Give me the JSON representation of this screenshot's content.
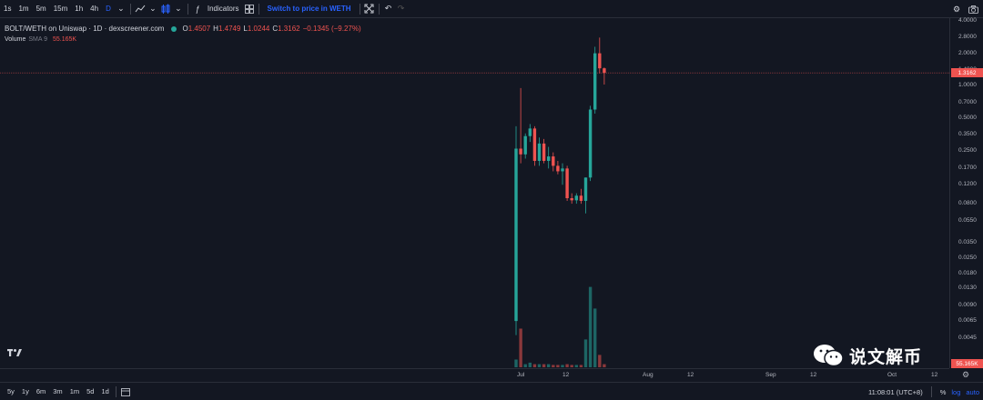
{
  "toolbar": {
    "intervals": [
      "1s",
      "1m",
      "5m",
      "15m",
      "1h",
      "4h",
      "D"
    ],
    "active_interval": "D",
    "indicators_label": "Indicators",
    "switch_label": "Switch to price in WETH"
  },
  "legend": {
    "symbol": "BOLT/WETH on Uniswap · 1D · dexscreener.com",
    "o_key": "O",
    "o_val": "1.4507",
    "h_key": "H",
    "h_val": "1.4749",
    "l_key": "L",
    "l_val": "1.0244",
    "c_key": "C",
    "c_val": "1.3162",
    "change": "−0.1345 (−9.27%)",
    "volume_label": "Volume",
    "volume_sma": "SMA 9",
    "volume_value": "55.165K"
  },
  "price_axis": {
    "labels": [
      "4.0000",
      "2.8000",
      "2.0000",
      "1.4000",
      "1.0000",
      "0.7000",
      "0.5000",
      "0.3500",
      "0.2500",
      "0.1700",
      "0.1200",
      "0.0800",
      "0.0550",
      "0.0350",
      "0.0250",
      "0.0180",
      "0.0130",
      "0.0090",
      "0.0065",
      "0.0045"
    ],
    "last_price": "1.3162",
    "volume_tag": "55.165K"
  },
  "time_axis": {
    "labels": [
      "Jul",
      "12",
      "Aug",
      "12",
      "Sep",
      "12",
      "Oct",
      "12"
    ]
  },
  "bottom": {
    "ranges": [
      "5y",
      "1y",
      "6m",
      "3m",
      "1m",
      "5d",
      "1d"
    ],
    "time": "11:08:01 (UTC+8)",
    "percent": "%",
    "log": "log",
    "auto": "auto"
  },
  "watermark": {
    "text": "说文解币"
  },
  "colors": {
    "up": "#26a69a",
    "down": "#ef5350",
    "background": "#131722",
    "accent": "#2962ff"
  },
  "chart_data": {
    "type": "candlestick",
    "scale": "log",
    "candles": [
      {
        "date": "Jul 1",
        "o": 0.0065,
        "h": 0.42,
        "l": 0.0048,
        "c": 0.26
      },
      {
        "date": "Jul 2",
        "o": 0.26,
        "h": 0.95,
        "l": 0.19,
        "c": 0.23
      },
      {
        "date": "Jul 3",
        "o": 0.23,
        "h": 0.36,
        "l": 0.21,
        "c": 0.34
      },
      {
        "date": "Jul 4",
        "o": 0.34,
        "h": 0.44,
        "l": 0.3,
        "c": 0.4
      },
      {
        "date": "Jul 5",
        "o": 0.4,
        "h": 0.42,
        "l": 0.18,
        "c": 0.2
      },
      {
        "date": "Jul 6",
        "o": 0.2,
        "h": 0.33,
        "l": 0.18,
        "c": 0.29
      },
      {
        "date": "Jul 7",
        "o": 0.29,
        "h": 0.32,
        "l": 0.19,
        "c": 0.2
      },
      {
        "date": "Jul 8",
        "o": 0.2,
        "h": 0.27,
        "l": 0.17,
        "c": 0.22
      },
      {
        "date": "Jul 9",
        "o": 0.22,
        "h": 0.24,
        "l": 0.16,
        "c": 0.18
      },
      {
        "date": "Jul 10",
        "o": 0.18,
        "h": 0.2,
        "l": 0.15,
        "c": 0.16
      },
      {
        "date": "Jul 11",
        "o": 0.16,
        "h": 0.19,
        "l": 0.12,
        "c": 0.17
      },
      {
        "date": "Jul 12",
        "o": 0.17,
        "h": 0.18,
        "l": 0.085,
        "c": 0.09
      },
      {
        "date": "Jul 13",
        "o": 0.09,
        "h": 0.1,
        "l": 0.08,
        "c": 0.086
      },
      {
        "date": "Jul 14",
        "o": 0.086,
        "h": 0.1,
        "l": 0.08,
        "c": 0.095
      },
      {
        "date": "Jul 15",
        "o": 0.095,
        "h": 0.11,
        "l": 0.08,
        "c": 0.085
      },
      {
        "date": "Jul 16",
        "o": 0.085,
        "h": 0.14,
        "l": 0.065,
        "c": 0.14
      },
      {
        "date": "Jul 17",
        "o": 0.14,
        "h": 0.65,
        "l": 0.13,
        "c": 0.6
      },
      {
        "date": "Jul 18",
        "o": 0.6,
        "h": 2.3,
        "l": 0.55,
        "c": 2.0
      },
      {
        "date": "Jul 19",
        "o": 2.0,
        "h": 2.8,
        "l": 1.3,
        "c": 1.45
      },
      {
        "date": "Jul 20",
        "o": 1.4507,
        "h": 1.4749,
        "l": 1.0244,
        "c": 1.3162
      }
    ],
    "volume": [
      0.5,
      2.5,
      0.2,
      0.3,
      0.2,
      0.2,
      0.2,
      0.2,
      0.15,
      0.15,
      0.15,
      0.2,
      0.15,
      0.15,
      0.15,
      1.8,
      5.2,
      3.8,
      0.8,
      0.2
    ]
  }
}
